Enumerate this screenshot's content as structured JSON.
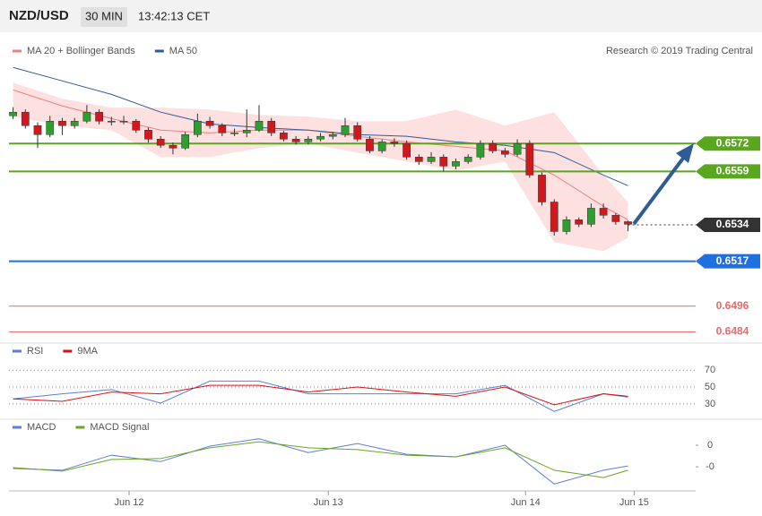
{
  "header": {
    "symbol": "NZD/USD",
    "interval": "30 MIN",
    "time": "13:42:13 CET",
    "credit": "Research © 2019 Trading Central"
  },
  "chart_data": [
    {
      "type": "candlestick",
      "xlim": [
        0,
        164
      ],
      "ylim": [
        0.648,
        0.6614
      ],
      "xticks": [
        {
          "value": 29.3,
          "label": "Jun 12"
        },
        {
          "value": 77.9,
          "label": "Jun 13"
        },
        {
          "value": 126,
          "label": "Jun 14"
        },
        {
          "value": 152.5,
          "label": "Jun 15"
        }
      ],
      "up_color": "#2e9e2e",
      "down_color": "#d2171d",
      "x": [
        1,
        4,
        7,
        10,
        13,
        16,
        19,
        22,
        25,
        28,
        31,
        34,
        37,
        40,
        43,
        46,
        49,
        52,
        55,
        58,
        61,
        64,
        67,
        70,
        73,
        76,
        79,
        82,
        85,
        88,
        91,
        94,
        97,
        100,
        103,
        106,
        109,
        112,
        115,
        118,
        121,
        124,
        127,
        130,
        133,
        136,
        139,
        142,
        145,
        148,
        151
      ],
      "open": [
        0.6585,
        0.65867,
        0.65804,
        0.65762,
        0.65825,
        0.65804,
        0.65825,
        0.65867,
        0.65825,
        0.65825,
        0.65825,
        0.65783,
        0.65741,
        0.65712,
        0.65699,
        0.65762,
        0.65825,
        0.65804,
        0.6577,
        0.6577,
        0.65783,
        0.65825,
        0.6577,
        0.65741,
        0.65728,
        0.65741,
        0.65754,
        0.65762,
        0.65804,
        0.65741,
        0.65686,
        0.65728,
        0.6572,
        0.65657,
        0.65636,
        0.65657,
        0.65615,
        0.65636,
        0.65657,
        0.6572,
        0.65686,
        0.6567,
        0.6572,
        0.65573,
        0.65447,
        0.65309,
        0.65364,
        0.65343,
        0.65418,
        0.65385,
        0.65355
      ],
      "high": [
        0.6589,
        0.6588,
        0.6582,
        0.6585,
        0.6584,
        0.6584,
        0.659,
        0.6588,
        0.65845,
        0.6585,
        0.65835,
        0.65795,
        0.65755,
        0.65725,
        0.65775,
        0.6586,
        0.65845,
        0.65815,
        0.6579,
        0.6588,
        0.659,
        0.6584,
        0.6578,
        0.65755,
        0.65755,
        0.6577,
        0.65775,
        0.6584,
        0.6582,
        0.65755,
        0.6574,
        0.65745,
        0.65735,
        0.6567,
        0.6568,
        0.6567,
        0.6565,
        0.6567,
        0.65735,
        0.65735,
        0.657,
        0.6574,
        0.65735,
        0.65585,
        0.6546,
        0.6538,
        0.65375,
        0.6544,
        0.6544,
        0.65395,
        0.6536
      ],
      "low": [
        0.65835,
        0.6579,
        0.657,
        0.6575,
        0.6576,
        0.6579,
        0.65815,
        0.6581,
        0.65805,
        0.6581,
        0.6577,
        0.65725,
        0.657,
        0.6567,
        0.6569,
        0.6575,
        0.6579,
        0.65755,
        0.65755,
        0.6575,
        0.65775,
        0.65755,
        0.6573,
        0.65715,
        0.65715,
        0.6573,
        0.6574,
        0.6575,
        0.6573,
        0.65675,
        0.65675,
        0.65705,
        0.65645,
        0.6562,
        0.65625,
        0.6559,
        0.656,
        0.65625,
        0.65645,
        0.65675,
        0.65655,
        0.6566,
        0.6556,
        0.6543,
        0.6529,
        0.65295,
        0.6533,
        0.6533,
        0.6537,
        0.6534,
        0.6531
      ],
      "close": [
        0.65867,
        0.65804,
        0.65762,
        0.65825,
        0.65804,
        0.65825,
        0.65867,
        0.65825,
        0.65825,
        0.65825,
        0.65783,
        0.65741,
        0.65712,
        0.65699,
        0.65762,
        0.65825,
        0.65804,
        0.6577,
        0.6577,
        0.65783,
        0.65825,
        0.6577,
        0.65741,
        0.65728,
        0.65741,
        0.65754,
        0.65762,
        0.65804,
        0.65741,
        0.65686,
        0.65728,
        0.6572,
        0.65657,
        0.65636,
        0.65657,
        0.65615,
        0.65636,
        0.65657,
        0.6572,
        0.65686,
        0.6567,
        0.6572,
        0.65573,
        0.65447,
        0.65309,
        0.65364,
        0.65343,
        0.65418,
        0.65385,
        0.65355,
        0.65343
      ],
      "bollinger": {
        "name": "MA 20 + Bollinger Bands",
        "color": "#f08080",
        "fill": "#fde0e0",
        "x": [
          1,
          13,
          25,
          37,
          49,
          61,
          73,
          85,
          97,
          109,
          121,
          133,
          145,
          151
        ],
        "upper": [
          0.66005,
          0.6593,
          0.65888,
          0.65888,
          0.65879,
          0.65854,
          0.65846,
          0.65825,
          0.65825,
          0.65879,
          0.65804,
          0.65867,
          0.65573,
          0.65447
        ],
        "middle": [
          0.65971,
          0.65896,
          0.65837,
          0.65783,
          0.6577,
          0.65783,
          0.65783,
          0.65754,
          0.65728,
          0.65707,
          0.65686,
          0.65573,
          0.65427,
          0.65364
        ],
        "lower": [
          0.65846,
          0.65804,
          0.65783,
          0.65657,
          0.65657,
          0.65699,
          0.6572,
          0.65678,
          0.65636,
          0.65594,
          0.65636,
          0.65259,
          0.65217,
          0.6528
        ]
      },
      "ma50": {
        "name": "MA 50",
        "color": "#2e5c99",
        "x": [
          1,
          13,
          25,
          37,
          49,
          61,
          73,
          85,
          97,
          109,
          121,
          133,
          145,
          151
        ],
        "values": [
          0.66076,
          0.66013,
          0.6595,
          0.65867,
          0.65812,
          0.65795,
          0.65783,
          0.65762,
          0.65754,
          0.65728,
          0.65712,
          0.65678,
          0.65573,
          0.65523
        ]
      },
      "levels": [
        {
          "value": 0.6572,
          "color": "#5aa61e",
          "style": "tag",
          "dash": false
        },
        {
          "value": 0.6559,
          "color": "#5aa61e",
          "style": "tag",
          "dash": false
        },
        {
          "value": 0.6534,
          "color": "#333333",
          "style": "tag",
          "dash": true
        },
        {
          "value": 0.6517,
          "color": "#1e6fe0",
          "style": "tag",
          "dash": false
        },
        {
          "value": 0.6496,
          "color": "#e86a6a",
          "style": "text",
          "dash": false
        },
        {
          "value": 0.6484,
          "color": "#e86a6a",
          "style": "text",
          "dash": false
        }
      ]
    },
    {
      "type": "line",
      "xlim": [
        0,
        164
      ],
      "ylim": [
        15,
        84
      ],
      "yticks": [
        30,
        50,
        70
      ],
      "grid": true,
      "x": [
        1,
        13,
        25,
        37,
        49,
        61,
        73,
        85,
        97,
        109,
        121,
        133,
        145,
        151
      ],
      "series": [
        {
          "name": "RSI",
          "color": "#5b7fd6",
          "values": [
            36,
            42,
            47,
            31,
            57,
            57,
            42,
            42,
            42,
            42,
            52,
            21,
            42,
            38
          ]
        },
        {
          "name": "9MA",
          "color": "#e01010",
          "values": [
            36,
            33,
            44,
            42,
            52,
            52,
            44,
            50,
            44,
            39,
            50,
            29,
            42,
            39
          ]
        }
      ]
    },
    {
      "type": "line",
      "xlim": [
        0,
        164
      ],
      "ylim": [
        -0.00106,
        0.00025
      ],
      "yticks": [
        {
          "value": -0.0005,
          "label": "-0"
        },
        0
      ],
      "grid": false,
      "x": [
        1,
        13,
        25,
        37,
        49,
        61,
        73,
        85,
        97,
        109,
        121,
        133,
        145,
        151
      ],
      "series": [
        {
          "name": "MACD",
          "color": "#5b7fd6",
          "values": [
            -0.00054,
            -0.00058,
            -0.00023,
            -0.00038,
            -2e-05,
            0.00015,
            -0.00017,
            4e-05,
            -0.00021,
            -0.00027,
            0,
            -0.0009,
            -0.00058,
            -0.00048
          ]
        },
        {
          "name": "MACD Signal",
          "color": "#6aa521",
          "values": [
            -0.00052,
            -0.0006,
            -0.00033,
            -0.00031,
            -6e-05,
            8e-05,
            -6e-05,
            -0.0001,
            -0.00023,
            -0.00027,
            -6e-05,
            -0.00058,
            -0.00075,
            -0.00058
          ]
        }
      ]
    }
  ]
}
